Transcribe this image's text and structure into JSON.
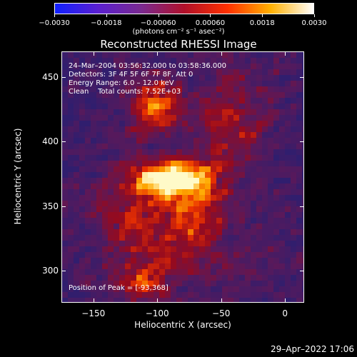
{
  "colorbar": {
    "ticks": [
      "−0.0030",
      "−0.0018",
      "−0.00060",
      "0.00060",
      "0.0018",
      "0.0030"
    ],
    "unit_label": "(photons cm⁻² s⁻¹ asec⁻²)",
    "colors": [
      "#1020ff",
      "#5a1fd0",
      "#7a2a90",
      "#b0102a",
      "#ff3000",
      "#ffb000",
      "#ffffff"
    ]
  },
  "title": "Reconstructed RHESSI Image",
  "annotations": {
    "time_range": "24–Mar–2004 03:56:32.000 to 03:58:36.000",
    "detectors": "Detectors: 3F 4F 5F 6F 7F 8F, Att 0",
    "energy": "Energy Range: 6.0 – 12.0 keV",
    "clean": "Clean    Total counts: 7.52E+03",
    "peak": "Position of Peak = [-93,368]"
  },
  "axes": {
    "xlabel": "Heliocentric X (arcsec)",
    "ylabel": "Heliocentric Y (arcsec)",
    "xlim": [
      -175,
      15
    ],
    "ylim": [
      275,
      470
    ],
    "xticks": [
      -150,
      -100,
      -50,
      0
    ],
    "xtick_labels": [
      "−150",
      "−100",
      "−50",
      "0"
    ],
    "yticks": [
      300,
      350,
      400,
      450
    ],
    "ytick_labels": [
      "300",
      "350",
      "400",
      "450"
    ]
  },
  "timestamp": "29–Apr–2022 17:06"
}
